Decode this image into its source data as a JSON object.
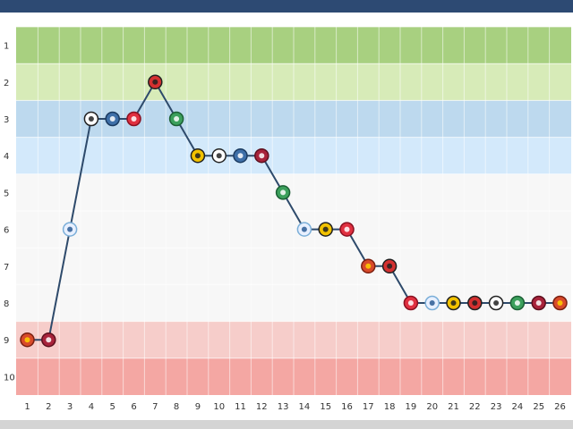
{
  "chart_data": {
    "type": "line",
    "x": [
      "1",
      "2",
      "3",
      "4",
      "5",
      "6",
      "7",
      "8",
      "9",
      "10",
      "11",
      "12",
      "13",
      "14",
      "15",
      "16",
      "17",
      "18",
      "19",
      "20",
      "21",
      "22",
      "23",
      "24",
      "25",
      "26"
    ],
    "y": [
      9,
      9,
      6,
      3,
      3,
      3,
      2,
      3,
      4,
      4,
      4,
      4,
      5,
      6,
      6,
      6,
      7,
      7,
      8,
      8,
      8,
      8,
      8,
      8,
      8,
      8
    ],
    "y_ticks": [
      "1",
      "2",
      "3",
      "4",
      "5",
      "6",
      "7",
      "8",
      "9",
      "10"
    ],
    "ylim": [
      1,
      10
    ],
    "y_inverted": true,
    "grid": true,
    "line_color": "#2e4a6b",
    "bands": [
      {
        "from": 1,
        "color": "#a8d080"
      },
      {
        "from": 2,
        "color": "#d7ebb8"
      },
      {
        "from": 3,
        "color": "#bdd9ee"
      },
      {
        "from": 4,
        "color": "#d3e9fb"
      },
      {
        "from": 5,
        "color": "#f7f7f7"
      },
      {
        "from": 6,
        "color": "#f7f7f7"
      },
      {
        "from": 7,
        "color": "#f7f7f7"
      },
      {
        "from": 8,
        "color": "#f7f7f7"
      },
      {
        "from": 9,
        "color": "#f6cdca"
      },
      {
        "from": 10,
        "color": "#f4a7a3"
      }
    ],
    "markers": [
      {
        "icon": "basel-crest-icon",
        "fill": "#d84a2a",
        "stroke": "#7a1f10",
        "text": "#ffd000"
      },
      {
        "icon": "servette-crest-icon",
        "fill": "#a8233b",
        "stroke": "#5c0f1d",
        "text": "#ffffff"
      },
      {
        "icon": "zurich-crest-icon",
        "fill": "#e8f0ff",
        "stroke": "#7aaed8",
        "text": "#2a5b94"
      },
      {
        "icon": "lugano-crest-icon",
        "fill": "#ffffff",
        "stroke": "#222222",
        "text": "#222222"
      },
      {
        "icon": "grasshoppers-crest-icon",
        "fill": "#3e6fa8",
        "stroke": "#1a3a60",
        "text": "#ffffff"
      },
      {
        "icon": "thun-crest-icon",
        "fill": "#e03040",
        "stroke": "#8a1020",
        "text": "#ffffff"
      },
      {
        "icon": "xamax-crest-icon",
        "fill": "#d43030",
        "stroke": "#202020",
        "text": "#202020"
      },
      {
        "icon": "stgallen-crest-icon",
        "fill": "#3ca05c",
        "stroke": "#1c6035",
        "text": "#ffffff"
      },
      {
        "icon": "youngboys-crest-icon",
        "fill": "#f2c200",
        "stroke": "#202020",
        "text": "#202020"
      },
      {
        "icon": "lugano-crest-icon",
        "fill": "#ffffff",
        "stroke": "#222222",
        "text": "#222222"
      },
      {
        "icon": "grasshoppers-crest-icon",
        "fill": "#3e6fa8",
        "stroke": "#1a3a60",
        "text": "#ffffff"
      },
      {
        "icon": "servette-crest-icon",
        "fill": "#a8233b",
        "stroke": "#5c0f1d",
        "text": "#ffffff"
      },
      {
        "icon": "stgallen-crest-icon",
        "fill": "#3ca05c",
        "stroke": "#1c6035",
        "text": "#ffffff"
      },
      {
        "icon": "zurich-crest-icon",
        "fill": "#e8f0ff",
        "stroke": "#7aaed8",
        "text": "#2a5b94"
      },
      {
        "icon": "youngboys-crest-icon",
        "fill": "#f2c200",
        "stroke": "#202020",
        "text": "#202020"
      },
      {
        "icon": "thun-crest-icon",
        "fill": "#e03040",
        "stroke": "#8a1020",
        "text": "#ffffff"
      },
      {
        "icon": "basel-crest-icon",
        "fill": "#d84a2a",
        "stroke": "#7a1f10",
        "text": "#ffd000"
      },
      {
        "icon": "xamax-crest-icon",
        "fill": "#d43030",
        "stroke": "#202020",
        "text": "#202020"
      },
      {
        "icon": "thun-crest-icon",
        "fill": "#e03040",
        "stroke": "#8a1020",
        "text": "#ffffff"
      },
      {
        "icon": "zurich-crest-icon",
        "fill": "#e8f0ff",
        "stroke": "#7aaed8",
        "text": "#2a5b94"
      },
      {
        "icon": "youngboys-crest-icon",
        "fill": "#f2c200",
        "stroke": "#202020",
        "text": "#202020"
      },
      {
        "icon": "xamax-crest-icon",
        "fill": "#d43030",
        "stroke": "#202020",
        "text": "#202020"
      },
      {
        "icon": "lugano-crest-icon",
        "fill": "#ffffff",
        "stroke": "#222222",
        "text": "#222222"
      },
      {
        "icon": "stgallen-crest-icon",
        "fill": "#3ca05c",
        "stroke": "#1c6035",
        "text": "#ffffff"
      },
      {
        "icon": "servette-crest-icon",
        "fill": "#a8233b",
        "stroke": "#5c0f1d",
        "text": "#ffffff"
      },
      {
        "icon": "basel-crest-icon",
        "fill": "#d84a2a",
        "stroke": "#7a1f10",
        "text": "#ffd000"
      }
    ]
  }
}
